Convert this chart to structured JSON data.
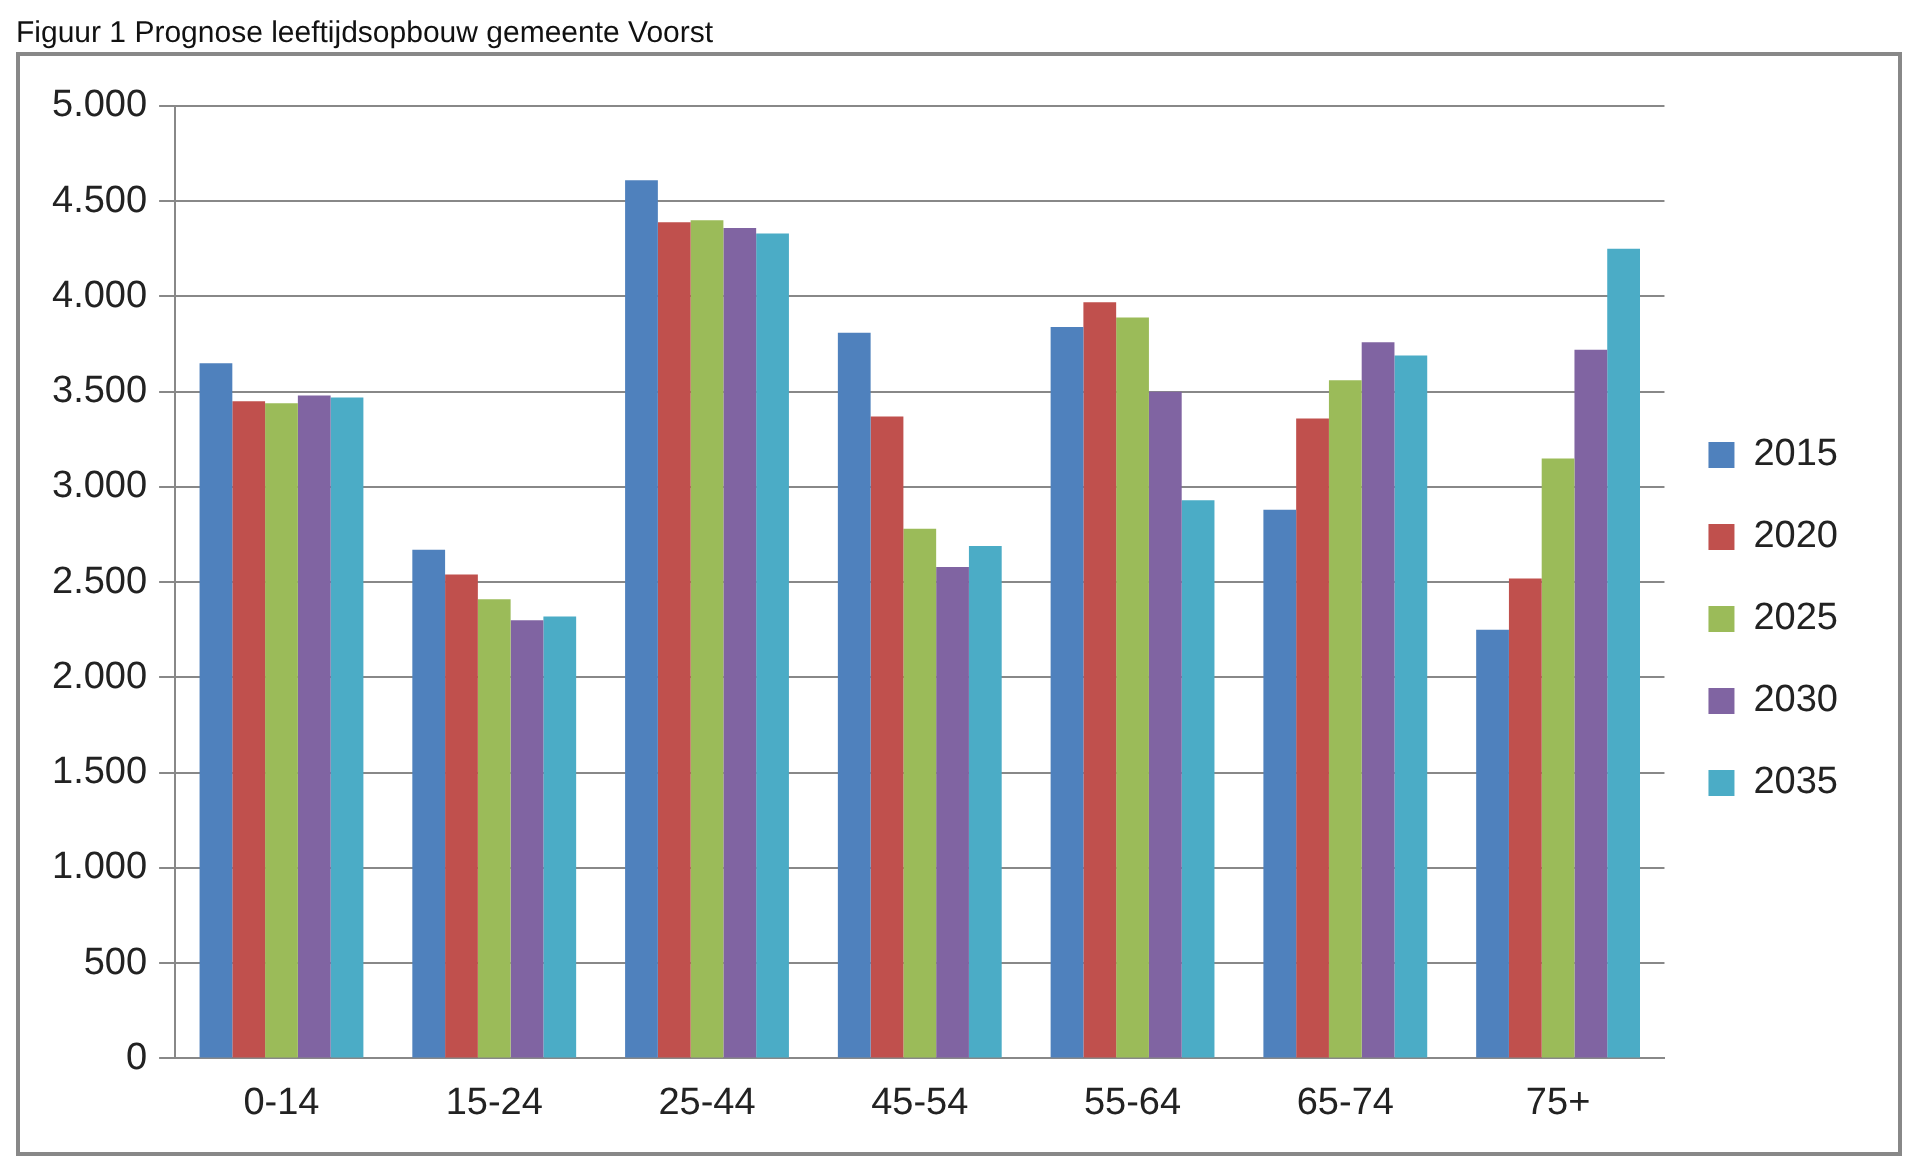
{
  "chart_data": {
    "type": "bar",
    "title": "Figuur 1 Prognose leeftijdsopbouw gemeente Voorst",
    "categories": [
      "0-14",
      "15-24",
      "25-44",
      "45-54",
      "55-64",
      "65-74",
      "75+"
    ],
    "series": [
      {
        "name": "2015",
        "color": "#4f81bd",
        "values": [
          3650,
          2670,
          4610,
          3810,
          3840,
          2880,
          2250
        ]
      },
      {
        "name": "2020",
        "color": "#c0504d",
        "values": [
          3450,
          2540,
          4390,
          3370,
          3970,
          3360,
          2520
        ]
      },
      {
        "name": "2025",
        "color": "#9bbb59",
        "values": [
          3440,
          2410,
          4400,
          2780,
          3890,
          3560,
          3150
        ]
      },
      {
        "name": "2030",
        "color": "#8064a2",
        "values": [
          3480,
          2300,
          4360,
          2580,
          3500,
          3760,
          3720
        ]
      },
      {
        "name": "2035",
        "color": "#4bacc6",
        "values": [
          3470,
          2320,
          4330,
          2690,
          2930,
          3690,
          4250
        ]
      }
    ],
    "ylim": [
      0,
      5000
    ],
    "yticks": [
      {
        "value": 0,
        "label": "0"
      },
      {
        "value": 500,
        "label": "500"
      },
      {
        "value": 1000,
        "label": "1.000"
      },
      {
        "value": 1500,
        "label": "1.500"
      },
      {
        "value": 2000,
        "label": "2.000"
      },
      {
        "value": 2500,
        "label": "2.500"
      },
      {
        "value": 3000,
        "label": "3.000"
      },
      {
        "value": 3500,
        "label": "3.500"
      },
      {
        "value": 4000,
        "label": "4.000"
      },
      {
        "value": 4500,
        "label": "4.500"
      },
      {
        "value": 5000,
        "label": "5.000"
      }
    ],
    "grid": "y",
    "legend": "right"
  }
}
